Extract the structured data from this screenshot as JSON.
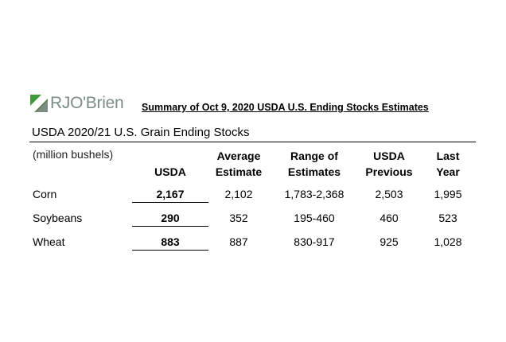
{
  "logo": {
    "text": "RJO'Brien",
    "colors": {
      "green": "#3e9a3a",
      "gray": "#7c8c86"
    }
  },
  "summary_title": "Summary of Oct 9, 2020 USDA U.S. Ending Stocks Estimates",
  "table_title": "USDA 2020/21 U.S. Grain Ending Stocks",
  "units": "(million bushels)",
  "headers": {
    "usda": "USDA",
    "average": [
      "Average",
      "Estimate"
    ],
    "range": [
      "Range of",
      "Estimates"
    ],
    "previous": [
      "USDA",
      "Previous"
    ],
    "last_year": [
      "Last",
      "Year"
    ]
  },
  "rows": [
    {
      "crop": "Corn",
      "usda": "2,167",
      "average": "2,102",
      "range": "1,783-2,368",
      "previous": "2,503",
      "last_year": "1,995"
    },
    {
      "crop": "Soybeans",
      "usda": "290",
      "average": "352",
      "range": "195-460",
      "previous": "460",
      "last_year": "523"
    },
    {
      "crop": "Wheat",
      "usda": "883",
      "average": "887",
      "range": "830-917",
      "previous": "925",
      "last_year": "1,028"
    }
  ]
}
